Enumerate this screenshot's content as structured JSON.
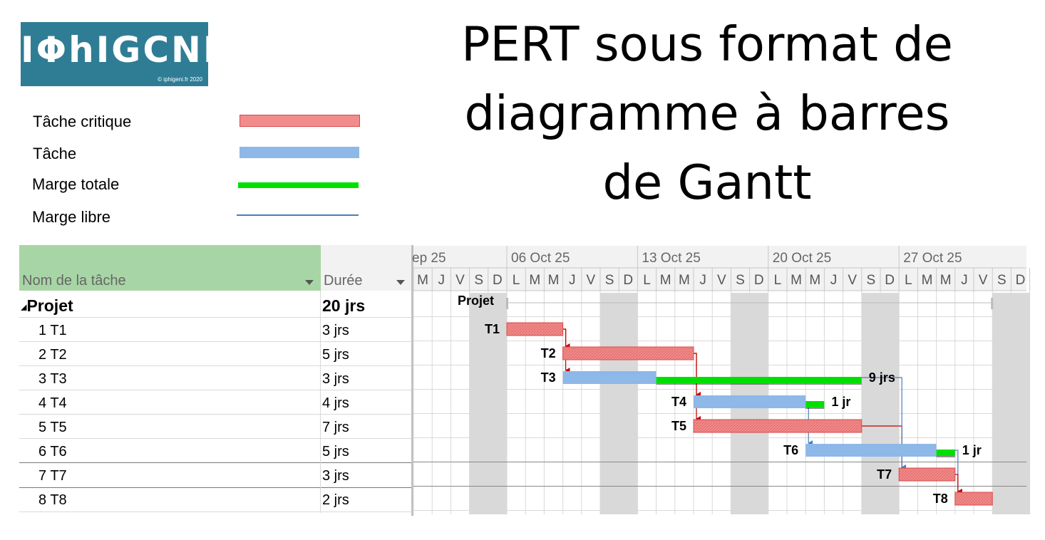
{
  "logo": {
    "text": "IΦhIGCNI",
    "copyright": "© iphigeni.fr 2020"
  },
  "title_lines": [
    "PERT sous format de",
    "diagramme à barres",
    "de Gantt"
  ],
  "legend": [
    {
      "label": "Tâche critique",
      "kind": "critical"
    },
    {
      "label": "Tâche",
      "kind": "task"
    },
    {
      "label": "Marge totale",
      "kind": "total_slack"
    },
    {
      "label": "Marge libre",
      "kind": "free_slack"
    }
  ],
  "colors": {
    "critical": "#f28b8b",
    "critical_border": "#d94a4a",
    "task": "#8db8e8",
    "total_slack": "#00e000",
    "free_slack": "#4a7ebb",
    "link_critical": "#c00000",
    "link_normal": "#4a7ebb",
    "name_header": "#a8d5a5",
    "weekend": "#d9d9d9"
  },
  "table": {
    "name_header": "Nom de la tâche",
    "duration_header": "Durée",
    "rows": [
      {
        "name": "Projet",
        "duration": "20 jrs",
        "summary": true
      },
      {
        "name": "1 T1",
        "duration": "3 jrs"
      },
      {
        "name": "2 T2",
        "duration": "5 jrs"
      },
      {
        "name": "3 T3",
        "duration": "3 jrs"
      },
      {
        "name": "4 T4",
        "duration": "4 jrs"
      },
      {
        "name": "5 T5",
        "duration": "7 jrs"
      },
      {
        "name": "6 T6",
        "duration": "5 jrs"
      },
      {
        "name": "7 T7",
        "duration": "3 jrs"
      },
      {
        "name": "8 T8",
        "duration": "2 jrs"
      }
    ]
  },
  "chart_data": {
    "type": "gantt",
    "timescale": {
      "weeks": [
        "ep 25",
        "06 Oct 25",
        "13 Oct 25",
        "20 Oct 25",
        "27 Oct 25"
      ],
      "days": [
        "M",
        "J",
        "V",
        "S",
        "D",
        "L",
        "M",
        "M",
        "J",
        "V",
        "S",
        "D",
        "L",
        "M",
        "M",
        "J",
        "V",
        "S",
        "D",
        "L",
        "M",
        "M",
        "J",
        "V",
        "S",
        "D",
        "L",
        "M",
        "M",
        "J",
        "V",
        "S",
        "D"
      ],
      "weekend_days": [
        3,
        4,
        10,
        11,
        17,
        18,
        24,
        25,
        31,
        32
      ]
    },
    "summary": {
      "label": "Projet",
      "start_day": 5,
      "end_day": 31
    },
    "tasks": [
      {
        "label": "T1",
        "row": 1,
        "start_day": 5,
        "duration_days": 3,
        "critical": true
      },
      {
        "label": "T2",
        "row": 2,
        "start_day": 8,
        "duration_days": 7,
        "critical": true
      },
      {
        "label": "T3",
        "row": 3,
        "start_day": 8,
        "duration_days": 5,
        "critical": false,
        "total_slack_days": 11,
        "slack_label": "9 jrs"
      },
      {
        "label": "T4",
        "row": 4,
        "start_day": 15,
        "duration_days": 6,
        "critical": false,
        "total_slack_days": 1,
        "slack_label": "1 jr"
      },
      {
        "label": "T5",
        "row": 5,
        "start_day": 15,
        "duration_days": 9,
        "critical": true
      },
      {
        "label": "T6",
        "row": 6,
        "start_day": 21,
        "duration_days": 7,
        "critical": false,
        "total_slack_days": 1,
        "slack_label": "1 jr"
      },
      {
        "label": "T7",
        "row": 7,
        "start_day": 26,
        "duration_days": 3,
        "critical": true
      },
      {
        "label": "T8",
        "row": 8,
        "start_day": 29,
        "duration_days": 2,
        "critical": true
      }
    ],
    "links": [
      {
        "from": 1,
        "to": 2,
        "critical": true
      },
      {
        "from": 1,
        "to": 3,
        "critical": true
      },
      {
        "from": 2,
        "to": 4,
        "critical": true
      },
      {
        "from": 2,
        "to": 5,
        "critical": true
      },
      {
        "from": 4,
        "to": 6,
        "critical": false
      },
      {
        "from": 5,
        "to": 7,
        "critical": true
      },
      {
        "from": 3,
        "to": 7,
        "critical": false
      },
      {
        "from": 6,
        "to": 8,
        "critical": false
      },
      {
        "from": 7,
        "to": 8,
        "critical": true
      }
    ]
  }
}
